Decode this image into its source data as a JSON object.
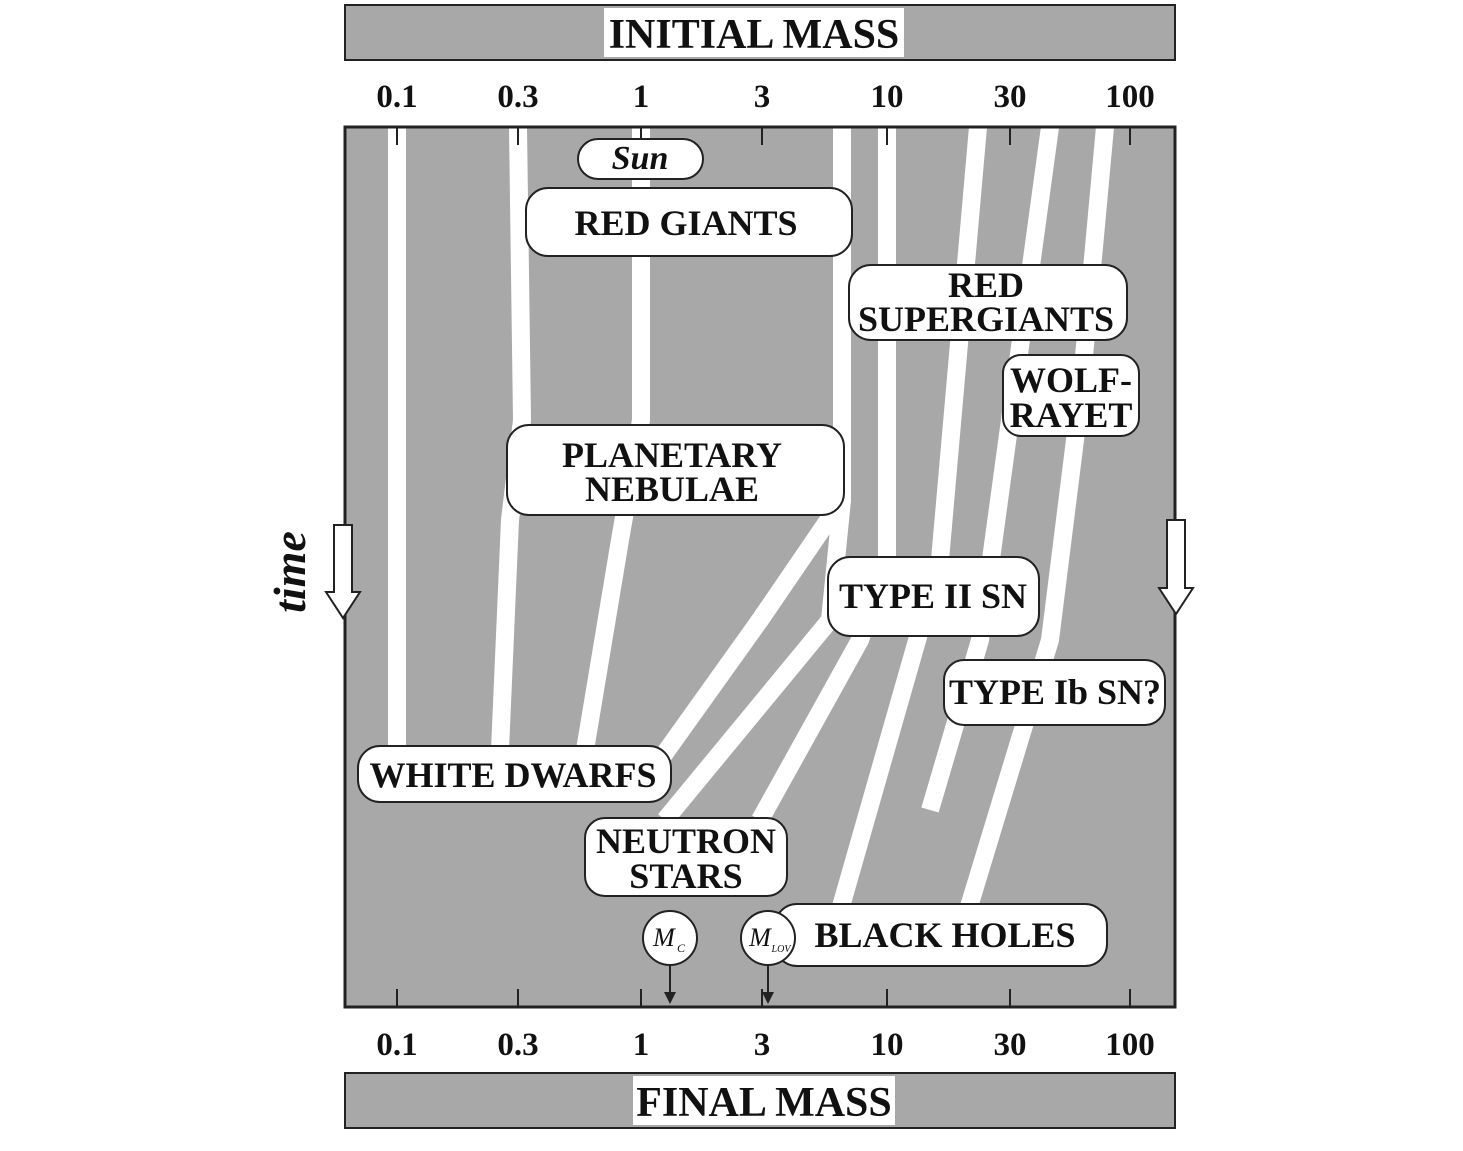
{
  "header": {
    "title": "INITIAL MASS"
  },
  "footer": {
    "title": "FINAL MASS"
  },
  "axis": {
    "ticks": [
      "0.1",
      "0.3",
      "1",
      "3",
      "10",
      "30",
      "100"
    ]
  },
  "side_label": "time",
  "boxes": {
    "sun": "Sun",
    "red_giants": "RED GIANTS",
    "red_supergiants": [
      "RED",
      "SUPERGIANTS"
    ],
    "wolf_rayet": [
      "WOLF-",
      "RAYET"
    ],
    "planetary_nebulae": [
      "PLANETARY",
      "NEBULAE"
    ],
    "type_ii_sn": "TYPE II SN",
    "type_ib_sn": "TYPE Ib SN?",
    "white_dwarfs": "WHITE DWARFS",
    "neutron_stars": [
      "NEUTRON",
      "STARS"
    ],
    "black_holes": "BLACK HOLES"
  },
  "markers": {
    "chandrasekhar": {
      "symbol": "M",
      "subscript": "C"
    },
    "oppenheimer_volkoff": {
      "symbol": "M",
      "subscript": "LOV"
    }
  },
  "colors": {
    "panel": "#a8a8a8",
    "track": "#ffffff",
    "frame": "#222222"
  }
}
